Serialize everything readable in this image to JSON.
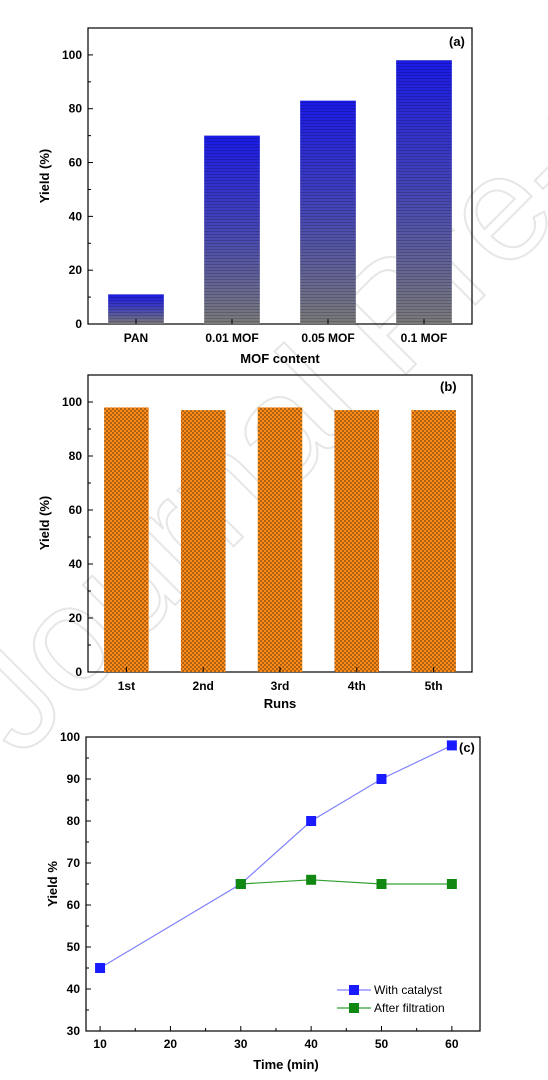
{
  "watermark": "Journal Pre-proof",
  "chart_data": [
    {
      "type": "bar",
      "panel_label": "(a)",
      "categories": [
        "PAN",
        "0.01 MOF",
        "0.05 MOF",
        "0.1 MOF"
      ],
      "values": [
        11,
        70,
        83,
        98
      ],
      "xlabel": "MOF content",
      "ylabel": "Yield (%)",
      "ylim": [
        0,
        110
      ],
      "yticks": [
        0,
        20,
        40,
        60,
        80,
        100
      ],
      "grid": false,
      "colors": {
        "top": "#1a1ae6",
        "bottom": "#7a7a7a"
      }
    },
    {
      "type": "bar",
      "panel_label": "(b)",
      "categories": [
        "1st",
        "2nd",
        "3rd",
        "4th",
        "5th"
      ],
      "values": [
        98,
        97,
        98,
        97,
        97
      ],
      "xlabel": "Runs",
      "ylabel": "Yield (%)",
      "ylim": [
        0,
        110
      ],
      "yticks": [
        0,
        20,
        40,
        60,
        80,
        100
      ],
      "grid": false,
      "colors": {
        "fill": "#ff8c1a",
        "dots": "#3a2000"
      }
    },
    {
      "type": "line",
      "panel_label": "(c)",
      "series": [
        {
          "name": "With catalyst",
          "x": [
            10,
            30,
            40,
            50,
            60
          ],
          "values": [
            45,
            65,
            80,
            90,
            98
          ],
          "line_color": "#8080ff",
          "marker_color": "#1a1aff"
        },
        {
          "name": "After filtration",
          "x": [
            30,
            40,
            50,
            60
          ],
          "values": [
            65,
            66,
            65,
            65
          ],
          "line_color": "#33a033",
          "marker_color": "#118811"
        }
      ],
      "xlabel": "Time (min)",
      "ylabel": "Yield %",
      "xlim": [
        8,
        64
      ],
      "ylim": [
        30,
        100
      ],
      "xticks": [
        10,
        20,
        30,
        40,
        50,
        60
      ],
      "yticks": [
        30,
        40,
        50,
        60,
        70,
        80,
        90,
        100
      ],
      "grid": false,
      "legend_position": "bottom-right"
    }
  ]
}
